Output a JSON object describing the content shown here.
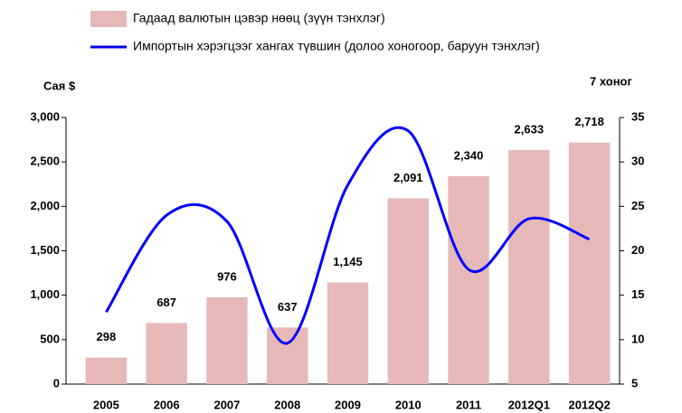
{
  "chart_data": {
    "type": "bar",
    "categories": [
      "2005",
      "2006",
      "2007",
      "2008",
      "2009",
      "2010",
      "2011",
      "2012Q1",
      "2012Q2"
    ],
    "series": [
      {
        "name": "Гадаад валютын цэвэр нөөц (зүүн тэнхлэг)",
        "type": "bar",
        "color": "#e6b9b8",
        "values": [
          298,
          687,
          976,
          637,
          1145,
          2091,
          2340,
          2633,
          2718
        ],
        "value_labels": [
          "298",
          "687",
          "976",
          "637",
          "1,145",
          "2,091",
          "2,340",
          "2,633",
          "2,718"
        ]
      },
      {
        "name": "Импортын хэрэгцээг хангах  түвшин (долоо хоногоор, баруун тэнхлэг)",
        "type": "line",
        "color": "#0000ff",
        "axis": "y2",
        "values": [
          13.1,
          24.0,
          23.3,
          9.6,
          27.4,
          33.5,
          17.9,
          23.6,
          21.3
        ]
      }
    ],
    "ylabel": "Сая $",
    "y2label": "7 хоног",
    "ylim": [
      0,
      3000
    ],
    "yticks": [
      0,
      500,
      {
        "value": 1000,
        "label": "1,000"
      },
      {
        "value": 1500,
        "label": "1,500"
      },
      {
        "value": 2000,
        "label": "2,000"
      },
      {
        "value": 2500,
        "label": "2,500"
      },
      {
        "value": 3000,
        "label": "3,000"
      }
    ],
    "y2lim": [
      5,
      35
    ],
    "y2ticks": [
      5,
      10,
      15,
      20,
      25,
      30,
      35
    ],
    "grid": false
  }
}
